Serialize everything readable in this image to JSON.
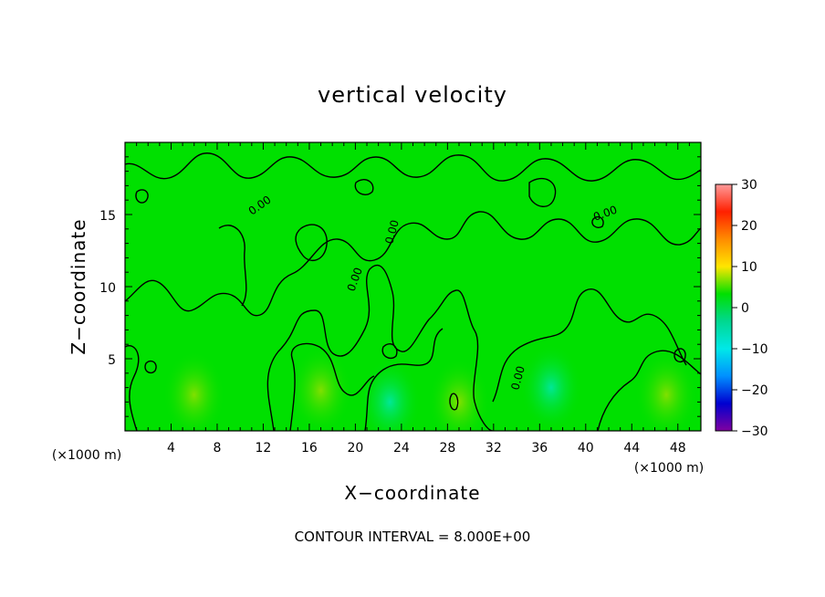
{
  "chart_data": {
    "type": "heatmap",
    "title": "vertical velocity",
    "xlabel": "X−coordinate",
    "ylabel": "Z−coordinate",
    "x_unit": "(×1000 m)",
    "z_unit": "(×1000 m)",
    "xlim": [
      0,
      50
    ],
    "ylim": [
      0,
      20
    ],
    "x_ticks": [
      4,
      8,
      12,
      16,
      20,
      24,
      28,
      32,
      36,
      40,
      44,
      48
    ],
    "y_ticks": [
      5,
      10,
      15
    ],
    "x_tick_labels": [
      "4",
      "8",
      "12",
      "16",
      "20",
      "24",
      "28",
      "32",
      "36",
      "40",
      "44",
      "48"
    ],
    "y_tick_labels": [
      "5",
      "10",
      "15"
    ],
    "colorbar": {
      "range": [
        -30,
        30
      ],
      "ticks": [
        30,
        20,
        10,
        0,
        -10,
        -20,
        -30
      ],
      "tick_labels": [
        "30",
        "20",
        "10",
        "0",
        "−10",
        "−20",
        "−30"
      ],
      "colors": [
        "#ff9a9a",
        "#ff2000",
        "#ff8c00",
        "#ffe600",
        "#00e000",
        "#00d890",
        "#00e8e8",
        "#0090ff",
        "#0000d0",
        "#8000a0"
      ]
    },
    "contour_interval": "CONTOUR INTERVAL = 8.000E+00",
    "contour_label": "0.00",
    "regions": [
      {
        "x_center": 6,
        "z_center": 2.5,
        "value": 4
      },
      {
        "x_center": 17,
        "z_center": 2.8,
        "value": 4
      },
      {
        "x_center": 23,
        "z_center": 2.0,
        "value": -4
      },
      {
        "x_center": 29,
        "z_center": 2.0,
        "value": 3
      },
      {
        "x_center": 37,
        "z_center": 3.0,
        "value": -4
      },
      {
        "x_center": 47,
        "z_center": 2.5,
        "value": 4
      }
    ]
  }
}
